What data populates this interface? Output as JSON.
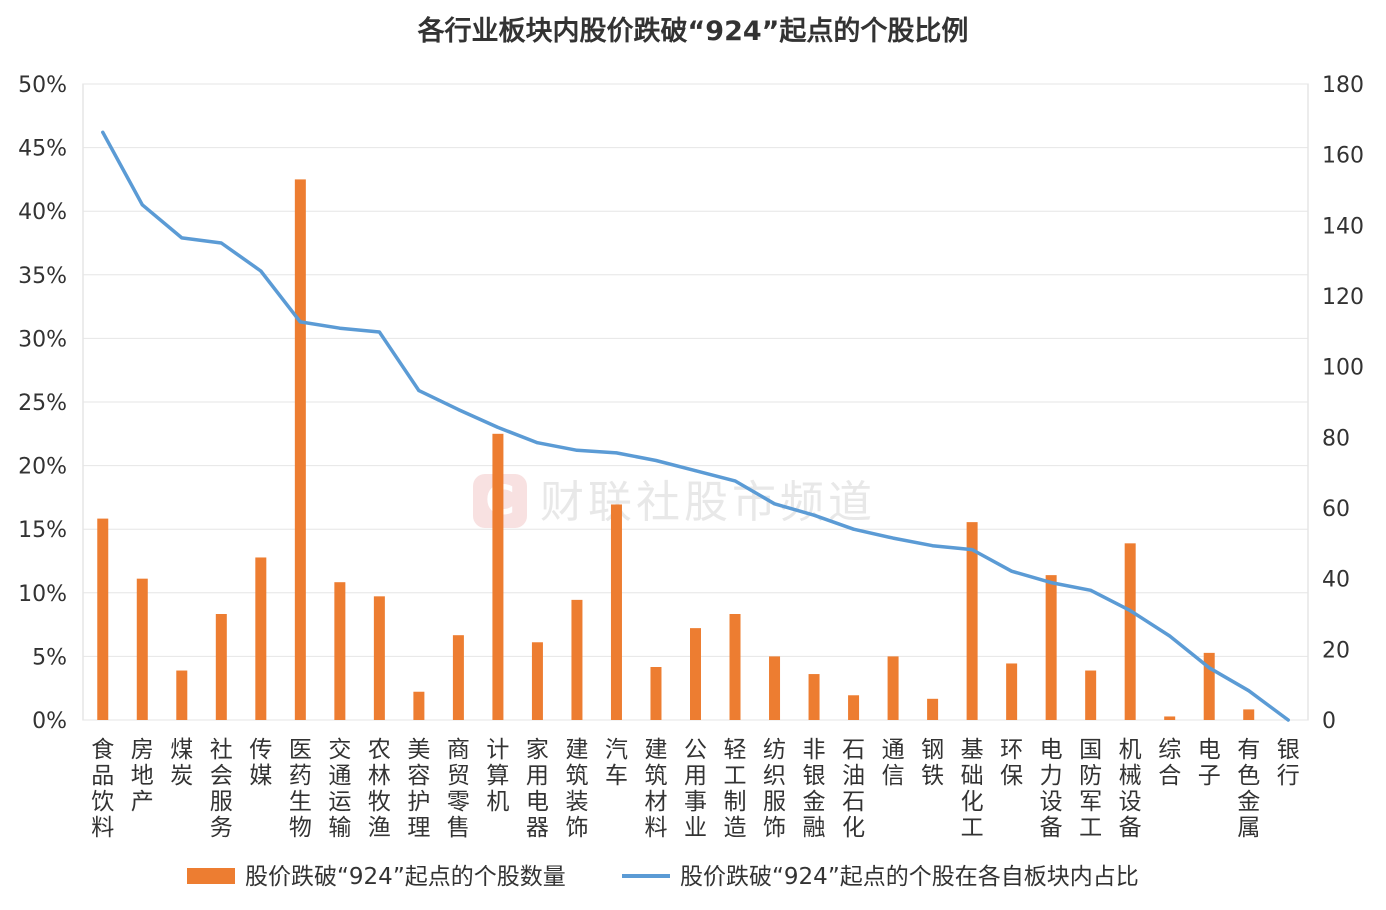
{
  "chart_data": {
    "type": "bar",
    "title": "各行业板块内股价跌破“924”起点的个股比例",
    "categories": [
      "食品饮料",
      "房地产",
      "煤炭",
      "社会服务",
      "传媒",
      "医药生物",
      "交通运输",
      "农林牧渔",
      "美容护理",
      "商贸零售",
      "计算机",
      "家用电器",
      "建筑装饰",
      "汽车",
      "建筑材料",
      "公用事业",
      "轻工制造",
      "纺织服饰",
      "非银金融",
      "石油石化",
      "通信",
      "钢铁",
      "基础化工",
      "环保",
      "电力设备",
      "国防军工",
      "机械设备",
      "综合",
      "电子",
      "有色金属",
      "银行"
    ],
    "series": [
      {
        "name": "股价跌破“924”起点的个股数量",
        "type": "bar",
        "axis": "right",
        "color": "#ED7D31",
        "values": [
          57,
          40,
          14,
          30,
          46,
          153,
          39,
          35,
          8,
          24,
          81,
          22,
          34,
          61,
          15,
          26,
          30,
          18,
          13,
          7,
          18,
          6,
          56,
          16,
          41,
          14,
          50,
          1,
          19,
          3,
          0
        ]
      },
      {
        "name": "股价跌破“924”起点的个股在各自板块内占比",
        "type": "line",
        "axis": "left",
        "color": "#5B9BD5",
        "values": [
          46.2,
          40.5,
          37.9,
          37.5,
          35.3,
          31.3,
          30.8,
          30.5,
          25.9,
          24.4,
          23.0,
          21.8,
          21.2,
          21.0,
          20.4,
          19.6,
          18.8,
          17.0,
          16.1,
          15.0,
          14.3,
          13.7,
          13.4,
          11.7,
          10.8,
          10.2,
          8.6,
          6.6,
          4.1,
          2.3,
          0.0
        ]
      }
    ],
    "y_left": {
      "ylim": [
        0,
        50
      ],
      "ticks": [
        "0%",
        "5%",
        "10%",
        "15%",
        "20%",
        "25%",
        "30%",
        "35%",
        "40%",
        "45%",
        "50%"
      ]
    },
    "y_right": {
      "ylim": [
        0,
        180
      ],
      "ticks": [
        "0",
        "20",
        "40",
        "60",
        "80",
        "100",
        "120",
        "140",
        "160",
        "180"
      ]
    },
    "xlabel": "",
    "ylabel": "",
    "grid": true,
    "legend_position": "bottom"
  },
  "watermark": {
    "text": "财联社股市频道",
    "logo_letter": "C"
  },
  "colors": {
    "bar": "#ED7D31",
    "line": "#5B9BD5",
    "watermark": "#f3c9c9"
  }
}
